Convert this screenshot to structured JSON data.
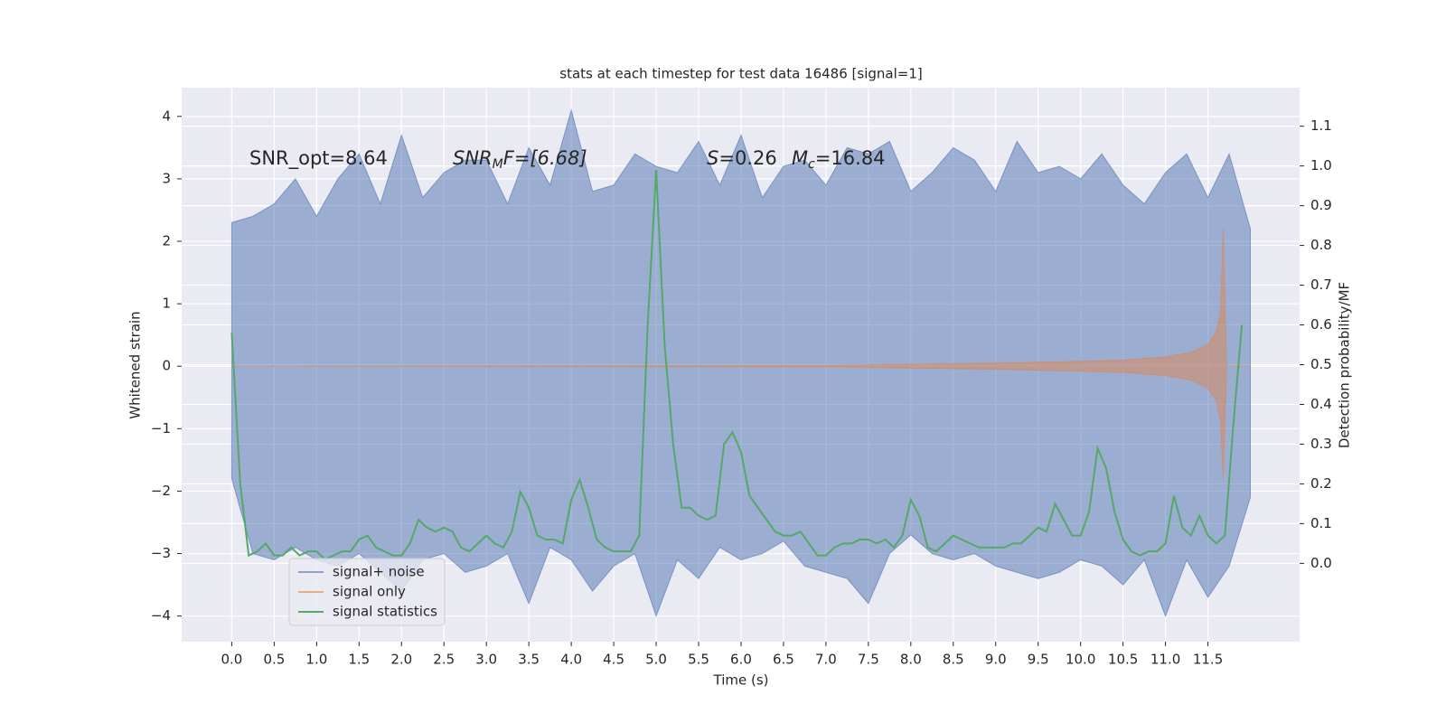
{
  "chart_data": {
    "type": "line",
    "title": "stats at each timestep for test data 16486 [signal=1]",
    "x_label": "Time (s)",
    "y_label": "Whitened strain",
    "y2_label": "Detection probability/MF",
    "xlim": [
      -0.59,
      12.58
    ],
    "ylim": [
      -4.41,
      4.46
    ],
    "y2lim": [
      -0.197,
      1.197
    ],
    "xticks": [
      {
        "value": 0,
        "label": "0.0"
      },
      0.5,
      {
        "value": 1,
        "label": "1.0"
      },
      1.5,
      {
        "value": 2,
        "label": "2.0"
      },
      2.5,
      {
        "value": 3,
        "label": "3.0"
      },
      3.5,
      {
        "value": 4,
        "label": "4.0"
      },
      4.5,
      {
        "value": 5,
        "label": "5.0"
      },
      5.5,
      {
        "value": 6,
        "label": "6.0"
      },
      6.5,
      {
        "value": 7,
        "label": "7.0"
      },
      7.5,
      {
        "value": 8,
        "label": "8.0"
      },
      8.5,
      {
        "value": 9,
        "label": "9.0"
      },
      9.5,
      {
        "value": 10,
        "label": "10.0"
      },
      10.5,
      {
        "value": 11,
        "label": "11.0"
      },
      11.5
    ],
    "yticks": [
      {
        "value": -4,
        "label": "−4"
      },
      {
        "value": -3,
        "label": "−3"
      },
      {
        "value": -2,
        "label": "−2"
      },
      {
        "value": -1,
        "label": "−1"
      },
      0,
      1,
      2,
      3,
      4
    ],
    "y2ticks": [
      {
        "value": 0,
        "label": "0.0"
      },
      0.1,
      0.2,
      0.3,
      0.4,
      0.5,
      0.6,
      0.7,
      0.8,
      0.9,
      {
        "value": 1,
        "label": "1.0"
      },
      1.1
    ],
    "grid": true,
    "legend": "lower left",
    "annotations": [
      {
        "text": "SNR_opt=8.64"
      },
      {
        "text": "SNR",
        "sub": "M",
        "after": "F=[6.68]"
      },
      {
        "text": "S",
        "after": "=0.26"
      },
      {
        "text": "M",
        "sub": "c",
        "after": "=16.84"
      }
    ],
    "series": [
      {
        "name": "signal+ noise",
        "color": "#4c72b0",
        "kind": "band",
        "x": [
          0,
          0.25,
          0.5,
          0.75,
          1,
          1.25,
          1.5,
          1.75,
          2,
          2.25,
          2.5,
          2.75,
          3,
          3.25,
          3.5,
          3.75,
          4,
          4.25,
          4.5,
          4.75,
          5,
          5.25,
          5.5,
          5.75,
          6,
          6.25,
          6.5,
          6.75,
          7,
          7.25,
          7.5,
          7.75,
          8,
          8.25,
          8.5,
          8.75,
          9,
          9.25,
          9.5,
          9.75,
          10,
          10.25,
          10.5,
          10.75,
          11,
          11.25,
          11.5,
          11.75,
          12
        ],
        "upper": [
          2.3,
          2.4,
          2.6,
          3.0,
          2.4,
          3.0,
          3.4,
          2.6,
          3.7,
          2.7,
          3.1,
          3.3,
          3.3,
          2.6,
          3.5,
          2.9,
          4.1,
          2.8,
          2.9,
          3.4,
          3.2,
          3.1,
          3.6,
          2.9,
          3.7,
          2.7,
          3.2,
          3.3,
          2.9,
          3.5,
          3.4,
          3.6,
          2.8,
          3.1,
          3.5,
          3.3,
          2.8,
          3.6,
          3.1,
          3.2,
          3.0,
          3.4,
          2.9,
          2.6,
          3.1,
          3.4,
          2.7,
          3.4,
          2.2
        ],
        "lower": [
          -1.8,
          -3.0,
          -3.1,
          -2.9,
          -3.1,
          -3.2,
          -3.0,
          -3.3,
          -3.6,
          -3.1,
          -3.0,
          -3.3,
          -3.2,
          -3.0,
          -3.8,
          -2.9,
          -3.1,
          -3.6,
          -3.2,
          -3.0,
          -4.0,
          -3.1,
          -3.4,
          -2.9,
          -3.1,
          -3.0,
          -2.8,
          -3.2,
          -3.3,
          -3.4,
          -3.8,
          -3.0,
          -2.7,
          -3.0,
          -3.1,
          -3.0,
          -3.2,
          -3.3,
          -3.4,
          -3.3,
          -3.1,
          -3.2,
          -3.5,
          -3.1,
          -4.0,
          -3.1,
          -3.7,
          -3.2,
          -2.1
        ]
      },
      {
        "name": "signal only",
        "color": "#dd8452",
        "kind": "band",
        "x": [
          0,
          7,
          8,
          9,
          10,
          10.5,
          11,
          11.3,
          11.5,
          11.6,
          11.65,
          11.68,
          11.72,
          12
        ],
        "upper": [
          0,
          0.01,
          0.03,
          0.05,
          0.08,
          0.1,
          0.15,
          0.22,
          0.35,
          0.55,
          0.9,
          2.2,
          0,
          0
        ],
        "lower": [
          0,
          -0.01,
          -0.03,
          -0.05,
          -0.08,
          -0.1,
          -0.15,
          -0.22,
          -0.35,
          -0.55,
          -0.9,
          -1.8,
          0,
          0
        ]
      },
      {
        "name": "signal statistics",
        "color": "#55a868",
        "kind": "line",
        "axis": "y2",
        "x": [
          0,
          0.1,
          0.2,
          0.3,
          0.4,
          0.5,
          0.6,
          0.7,
          0.8,
          0.9,
          1,
          1.1,
          1.2,
          1.3,
          1.4,
          1.5,
          1.6,
          1.7,
          1.8,
          1.9,
          2,
          2.1,
          2.2,
          2.3,
          2.4,
          2.5,
          2.6,
          2.7,
          2.8,
          2.9,
          3,
          3.1,
          3.2,
          3.3,
          3.4,
          3.5,
          3.6,
          3.7,
          3.8,
          3.9,
          4,
          4.1,
          4.2,
          4.3,
          4.4,
          4.5,
          4.6,
          4.7,
          4.8,
          4.9,
          5,
          5.1,
          5.2,
          5.3,
          5.4,
          5.5,
          5.6,
          5.7,
          5.8,
          5.9,
          6,
          6.1,
          6.2,
          6.3,
          6.4,
          6.5,
          6.6,
          6.7,
          6.8,
          6.9,
          7,
          7.1,
          7.2,
          7.3,
          7.4,
          7.5,
          7.6,
          7.7,
          7.8,
          7.9,
          8,
          8.1,
          8.2,
          8.3,
          8.4,
          8.5,
          8.6,
          8.7,
          8.8,
          8.9,
          9,
          9.1,
          9.2,
          9.3,
          9.4,
          9.5,
          9.6,
          9.7,
          9.8,
          9.9,
          10,
          10.1,
          10.2,
          10.3,
          10.4,
          10.5,
          10.6,
          10.7,
          10.8,
          10.9,
          11,
          11.1,
          11.2,
          11.3,
          11.4,
          11.5,
          11.6,
          11.7,
          11.8,
          11.9
        ],
        "values": [
          0.58,
          0.2,
          0.02,
          0.03,
          0.05,
          0.02,
          0.02,
          0.04,
          0.02,
          0.03,
          0.03,
          0.01,
          0.02,
          0.03,
          0.03,
          0.06,
          0.07,
          0.04,
          0.03,
          0.02,
          0.02,
          0.05,
          0.11,
          0.09,
          0.08,
          0.09,
          0.08,
          0.04,
          0.03,
          0.05,
          0.07,
          0.05,
          0.04,
          0.08,
          0.18,
          0.14,
          0.07,
          0.06,
          0.06,
          0.05,
          0.16,
          0.21,
          0.14,
          0.06,
          0.04,
          0.03,
          0.03,
          0.03,
          0.07,
          0.6,
          0.99,
          0.55,
          0.3,
          0.14,
          0.14,
          0.12,
          0.11,
          0.12,
          0.3,
          0.33,
          0.28,
          0.17,
          0.14,
          0.11,
          0.08,
          0.07,
          0.07,
          0.08,
          0.05,
          0.02,
          0.02,
          0.04,
          0.05,
          0.05,
          0.06,
          0.06,
          0.05,
          0.06,
          0.04,
          0.07,
          0.16,
          0.12,
          0.04,
          0.03,
          0.05,
          0.07,
          0.06,
          0.05,
          0.04,
          0.04,
          0.04,
          0.04,
          0.05,
          0.05,
          0.07,
          0.09,
          0.08,
          0.15,
          0.11,
          0.07,
          0.07,
          0.13,
          0.29,
          0.24,
          0.13,
          0.06,
          0.03,
          0.02,
          0.03,
          0.03,
          0.05,
          0.17,
          0.09,
          0.07,
          0.12,
          0.07,
          0.05,
          0.07,
          0.35,
          0.6
        ]
      }
    ]
  }
}
